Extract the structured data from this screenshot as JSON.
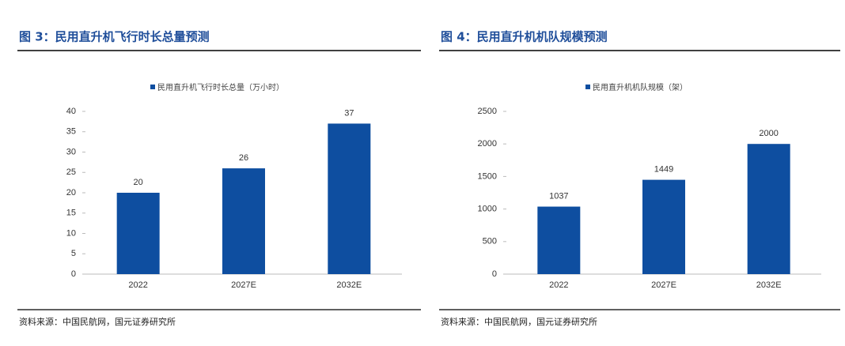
{
  "chart_data": [
    {
      "type": "bar",
      "title": "图 3：民用直升机飞行时长总量预测",
      "categories": [
        "2022",
        "2027E",
        "2032E"
      ],
      "series": [
        {
          "name": "民用直升机飞行时长总量（万小时）",
          "color": "#0e4ea0",
          "values": [
            20,
            26,
            37
          ]
        }
      ],
      "ylim": [
        0,
        40
      ],
      "yticks": [
        0,
        5,
        10,
        15,
        20,
        25,
        30,
        35,
        40
      ],
      "source": "资料来源：中国民航网，国元证券研究所"
    },
    {
      "type": "bar",
      "title": "图 4：民用直升机机队规模预测",
      "categories": [
        "2022",
        "2027E",
        "2032E"
      ],
      "series": [
        {
          "name": "民用直升机机队规模（架）",
          "color": "#0e4ea0",
          "values": [
            1037,
            1449,
            2000
          ]
        }
      ],
      "ylim": [
        0,
        2500
      ],
      "yticks": [
        0,
        500,
        1000,
        1500,
        2000,
        2500
      ],
      "source": "资料来源：中国民航网，国元证券研究所"
    }
  ]
}
